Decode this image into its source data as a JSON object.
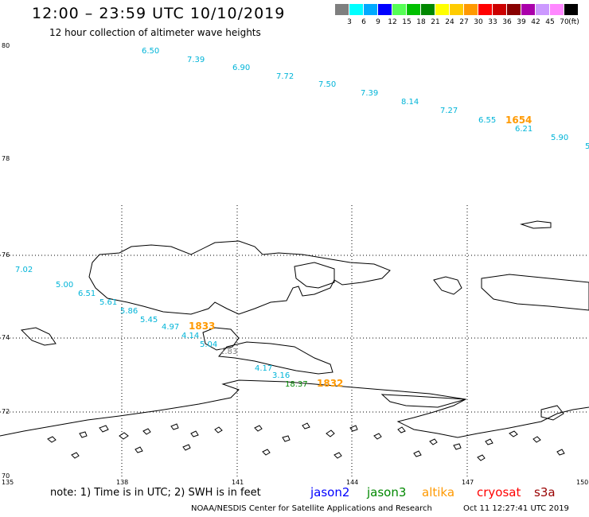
{
  "title": "12:00 – 23:59 UTC 10/10/2019",
  "subtitle": "12 hour collection of altimeter wave heights",
  "legend": {
    "labels": [
      "3",
      "6",
      "9",
      "12",
      "15",
      "18",
      "21",
      "24",
      "27",
      "30",
      "33",
      "36",
      "39",
      "42",
      "45",
      "70"
    ],
    "colors": [
      "#7f7f7f",
      "#00ffff",
      "#00aaff",
      "#0000ff",
      "#55ff55",
      "#00c000",
      "#008800",
      "#ffff00",
      "#ffcc00",
      "#ff9900",
      "#ff0000",
      "#cc0000",
      "#880000",
      "#aa00aa",
      "#cc99ff",
      "#ff88ff",
      "#000000"
    ],
    "unit": "(ft)"
  },
  "axes": {
    "lat_labels": [
      "80",
      "78",
      "76",
      "74",
      "72",
      "70"
    ],
    "lon_labels": [
      "135",
      "138",
      "141",
      "144",
      "147",
      "150"
    ]
  },
  "track_north": [
    "6.50",
    "7.39",
    "6.90",
    "7.72",
    "7.50",
    "7.39",
    "8.14",
    "7.27",
    "6.55",
    "6.21",
    "5.90",
    "5"
  ],
  "track_south": [
    "7.02",
    "5.00",
    "6.51",
    "5.61",
    "5.86",
    "5.45",
    "4.97",
    "4.14",
    "5.04",
    "2.83",
    "4.17",
    "3.16",
    "18.37"
  ],
  "time_labels": [
    "1654",
    "1833",
    "1832"
  ],
  "colors": {
    "cyan": "#00b4d8",
    "orange": "#ff9900",
    "gray": "#7f7f7f",
    "green": "#008800"
  },
  "note": "note:  1) Time is in UTC;  2) SWH is in feet",
  "satellites": [
    {
      "name": "jason2",
      "color": "#0000ff"
    },
    {
      "name": "jason3",
      "color": "#008800"
    },
    {
      "name": "altika",
      "color": "#ff9900"
    },
    {
      "name": "cryosat",
      "color": "#ff0000"
    },
    {
      "name": "s3a",
      "color": "#990000"
    }
  ],
  "credit": "NOAA/NESDIS Center for Satellite Applications and Research",
  "timestamp": "Oct 11 12:27:41 UTC 2019"
}
